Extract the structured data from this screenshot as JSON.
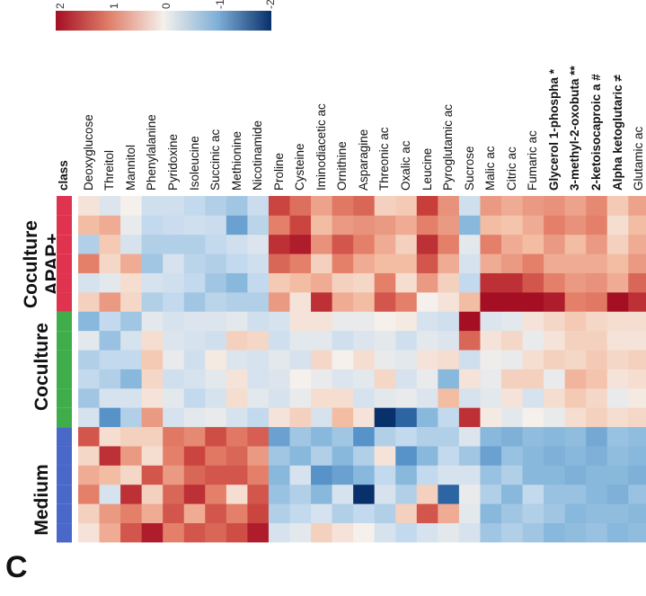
{
  "panel_letter": "C",
  "group_labels": {
    "medium": "Medium",
    "coculture": "Coculture",
    "coculture_apap_line1": "Coculture",
    "coculture_apap_line2": "APAP+"
  },
  "colors": {
    "medium": "#4a68c8",
    "coculture": "#3fae4a",
    "coculture_apap": "#e0334f",
    "high": "#a50f24",
    "mid": "#f5f0eb",
    "low": "#08306b"
  },
  "chart_data": {
    "type": "heatmap",
    "color_scale": {
      "min": -3,
      "max": 3,
      "colormap": "RdBu (red high, blue low)"
    },
    "legend_ticks": [
      "2",
      "1",
      "0",
      "-1",
      "-2"
    ],
    "class_row_label": "class",
    "rows": [
      "Deoxyglucose",
      "Threitol",
      "Mannitol",
      "Phenylalanine",
      "Pyridoxine",
      "Isoleucine",
      "Succinic ac",
      "Methionine",
      "Nicotinamide",
      "Proline",
      "Cysteine",
      "Iminodiacetic ac",
      "Ornithine",
      "Asparagine",
      "Threonic ac",
      "Oxalic ac",
      "Leucine",
      "Pyroglutamic ac",
      "Sucrose",
      "Malic ac",
      "Citric ac",
      "Fumaric ac",
      "Glycerol 1-phospha *",
      "3-methyl-2-oxobuta **",
      "2-ketoisocaproic a #",
      "Alpha ketoglutaric ≠",
      "Glutamic ac"
    ],
    "bold_rows": [
      "Glycerol 1-phospha *",
      "3-methyl-2-oxobuta **",
      "2-ketoisocaproic a #",
      "Alpha ketoglutaric ≠"
    ],
    "column_groups": [
      "Medium",
      "Medium",
      "Medium",
      "Medium",
      "Medium",
      "Medium",
      "Coculture",
      "Coculture",
      "Coculture",
      "Coculture",
      "Coculture",
      "Coculture",
      "Coculture APAP+",
      "Coculture APAP+",
      "Coculture APAP+",
      "Coculture APAP+",
      "Coculture APAP+",
      "Coculture APAP+"
    ],
    "values": [
      [
        0.2,
        0.5,
        1.5,
        1.0,
        0.4,
        2.0,
        -0.5,
        -1.2,
        -0.8,
        -1.0,
        -0.3,
        -1.5,
        0.5,
        -0.5,
        1.5,
        -1.0,
        0.8,
        0.2
      ],
      [
        1.0,
        1.2,
        -0.5,
        0.8,
        2.5,
        0.3,
        -2.0,
        -0.5,
        -1.0,
        -0.8,
        -1.3,
        -0.8,
        1.2,
        -0.3,
        0.4,
        0.6,
        1.0,
        -0.4
      ],
      [
        2.0,
        1.5,
        2.5,
        0.4,
        1.2,
        0.5,
        -1.0,
        -0.5,
        -1.5,
        -0.8,
        -0.5,
        -1.2,
        0.4,
        0.3,
        1.0,
        -0.5,
        -0.2,
        0.0
      ],
      [
        2.8,
        1.0,
        0.5,
        2.0,
        0.3,
        0.5,
        1.2,
        0.2,
        0.4,
        0.6,
        0.3,
        -0.3,
        -1.0,
        -0.5,
        -1.2,
        -1.0,
        -0.8,
        -0.6
      ],
      [
        1.5,
        2.0,
        1.8,
        1.2,
        1.5,
        1.6,
        -0.5,
        -0.3,
        -0.6,
        -0.2,
        -0.4,
        -0.5,
        -0.8,
        -0.6,
        -0.5,
        -1.0,
        -0.7,
        -0.6
      ],
      [
        2.0,
        1.0,
        2.5,
        1.8,
        2.2,
        1.4,
        -0.3,
        -0.8,
        -0.5,
        -0.6,
        -0.5,
        -0.4,
        -1.2,
        -0.8,
        -0.9,
        -1.0,
        -0.6,
        -0.8
      ],
      [
        1.8,
        2.0,
        1.5,
        2.0,
        1.6,
        2.1,
        -0.2,
        -0.5,
        -0.3,
        0.1,
        -0.6,
        -0.4,
        -0.9,
        -1.2,
        -1.0,
        -0.8,
        -0.7,
        -1.0
      ],
      [
        2.1,
        1.5,
        0.3,
        2.0,
        1.8,
        1.6,
        -0.5,
        0.3,
        0.2,
        -0.4,
        0.5,
        -0.3,
        -1.0,
        -1.5,
        -0.8,
        -0.6,
        -1.8,
        -1.2
      ],
      [
        2.8,
        2.2,
        2.0,
        1.5,
        1.2,
        1.9,
        -0.8,
        -0.3,
        -0.5,
        -0.5,
        0.4,
        -0.6,
        -1.0,
        -0.8,
        -0.6,
        -0.4,
        -0.9,
        -0.7
      ],
      [
        -0.5,
        -1.0,
        -1.3,
        -1.5,
        -1.2,
        -1.8,
        0.2,
        -0.5,
        -0.4,
        -0.3,
        -0.6,
        -0.5,
        1.2,
        0.6,
        1.8,
        2.5,
        1.5,
        2.2
      ],
      [
        -0.3,
        -0.8,
        -1.0,
        -0.5,
        -1.5,
        -1.2,
        0.5,
        -0.2,
        0.0,
        -0.5,
        -0.3,
        0.2,
        0.2,
        0.8,
        1.5,
        2.8,
        2.2,
        1.7
      ],
      [
        0.5,
        -0.5,
        -1.5,
        -2.0,
        -1.0,
        -1.5,
        -0.5,
        0.3,
        -0.2,
        0.4,
        -0.3,
        0.2,
        2.5,
        1.0,
        0.5,
        1.3,
        0.8,
        1.1
      ],
      [
        0.2,
        -1.0,
        -0.5,
        -1.8,
        -1.5,
        -1.2,
        0.8,
        0.3,
        -0.4,
        0.0,
        -0.6,
        -0.2,
        1.0,
        0.5,
        1.5,
        2.0,
        1.2,
        1.6
      ],
      [
        0.0,
        -0.8,
        -3.0,
        -1.5,
        -1.0,
        -2.0,
        0.2,
        -0.5,
        -0.3,
        0.3,
        -0.4,
        -0.2,
        0.8,
        0.4,
        1.0,
        1.5,
        1.3,
        1.8
      ],
      [
        -0.5,
        -1.0,
        -0.5,
        -0.8,
        0.2,
        -1.0,
        -3.0,
        -0.3,
        0.4,
        -0.2,
        -0.3,
        0.0,
        2.0,
        1.5,
        0.8,
        1.0,
        1.2,
        0.5
      ],
      [
        -0.8,
        0.5,
        -1.0,
        -1.5,
        -2.0,
        -0.8,
        -2.5,
        -0.2,
        -0.5,
        -0.3,
        -0.6,
        0.1,
        1.5,
        0.3,
        0.8,
        0.5,
        1.0,
        0.6
      ],
      [
        -0.5,
        2.0,
        0.5,
        -0.8,
        -1.5,
        -1.0,
        -1.5,
        -0.4,
        -0.2,
        0.2,
        -0.3,
        -0.5,
        0.0,
        1.2,
        2.0,
        2.5,
        1.5,
        2.3
      ],
      [
        -0.3,
        1.0,
        -2.5,
        -0.5,
        -0.8,
        -1.0,
        -0.8,
        0.8,
        -1.5,
        0.3,
        -0.4,
        -0.6,
        0.2,
        0.5,
        1.0,
        1.5,
        1.2,
        1.3
      ],
      [
        -0.5,
        -0.3,
        -0.2,
        -0.5,
        -1.2,
        -0.4,
        2.5,
        -0.5,
        0.2,
        -0.6,
        1.8,
        3.0,
        0.8,
        -0.8,
        -0.5,
        -0.3,
        -1.5,
        -0.6
      ],
      [
        -1.2,
        -1.5,
        -1.0,
        -1.3,
        -1.8,
        -1.5,
        0.1,
        -0.3,
        -0.2,
        -0.1,
        0.2,
        -0.4,
        3.0,
        2.5,
        1.0,
        1.5,
        0.8,
        1.2
      ],
      [
        -1.0,
        -1.2,
        -1.5,
        -1.0,
        -1.3,
        -1.6,
        -0.3,
        0.2,
        0.5,
        -0.2,
        0.4,
        -0.3,
        3.0,
        2.5,
        1.2,
        1.0,
        0.7,
        1.0
      ],
      [
        -1.2,
        -1.0,
        -0.8,
        -1.5,
        -1.5,
        -1.4,
        0.0,
        -0.5,
        0.5,
        0.3,
        -0.2,
        0.2,
        3.0,
        2.0,
        1.5,
        0.8,
        1.0,
        1.2
      ],
      [
        -1.5,
        -1.2,
        -1.3,
        -1.5,
        -1.6,
        -1.5,
        -0.2,
        0.3,
        -0.2,
        0.5,
        0.2,
        0.4,
        2.8,
        1.5,
        1.0,
        1.2,
        1.5,
        1.3
      ],
      [
        -1.4,
        -1.5,
        -1.3,
        -1.6,
        -1.5,
        -1.4,
        0.3,
        0.6,
        0.9,
        0.4,
        0.5,
        0.6,
        1.5,
        1.2,
        1.0,
        0.8,
        1.3,
        1.1
      ],
      [
        -1.3,
        -1.4,
        -1.5,
        -1.5,
        -1.6,
        -1.7,
        0.5,
        0.4,
        0.7,
        0.6,
        0.5,
        0.4,
        1.6,
        1.3,
        1.0,
        1.2,
        1.5,
        1.4
      ],
      [
        -1.5,
        -1.4,
        -1.6,
        -1.5,
        -1.4,
        -1.3,
        0.3,
        -0.2,
        0.2,
        0.4,
        0.2,
        0.3,
        3.0,
        1.0,
        0.8,
        0.5,
        0.3,
        0.6
      ],
      [
        -1.4,
        -1.5,
        -1.3,
        -1.6,
        -1.5,
        -1.4,
        0.4,
        0.1,
        0.3,
        0.5,
        0.2,
        0.3,
        2.5,
        1.8,
        1.2,
        1.0,
        0.8,
        1.1
      ]
    ]
  }
}
